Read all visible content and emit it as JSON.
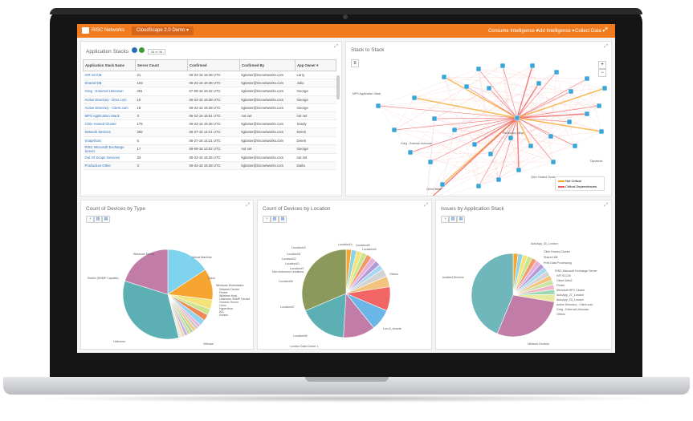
{
  "topbar": {
    "logo": "RISC Networks",
    "demo": "CloudScape 2.0 Demo",
    "menus": [
      "Consume Intelligence",
      "Add Intelligence",
      "Collect Data"
    ],
    "menu_icon": "hamburger-icon"
  },
  "app_stacks": {
    "title": "Application Stacks",
    "count_badge": "28 of 46",
    "columns": [
      "Application Stack Name",
      "Server Count",
      "Confirmed",
      "Confirmed By",
      "App Owner"
    ],
    "rows": [
      {
        "name": "IVR SCCM",
        "count": "21",
        "confirmed": "06-24-16 15:38 UTC",
        "by": "kgloster@riscnetworks.com",
        "owner": "Larry"
      },
      {
        "name": "Shared DB",
        "count": "103",
        "confirmed": "06-24-16 15:38 UTC",
        "by": "kgloster@riscnetworks.com",
        "owner": "Julio"
      },
      {
        "name": "Greg - External Unknown",
        "count": "291",
        "confirmed": "07-08-16 15:32 UTC",
        "by": "kgloster@riscnetworks.com",
        "owner": "George"
      },
      {
        "name": "Active Directory - Dmz.com",
        "count": "10",
        "confirmed": "06-24-16 15:38 UTC",
        "by": "kgloster@riscnetworks.com",
        "owner": "George"
      },
      {
        "name": "Active Directory - Client.com",
        "count": "18",
        "confirmed": "06-24-16 15:38 UTC",
        "by": "kgloster@riscnetworks.com",
        "owner": "George"
      },
      {
        "name": "MPS Application Stack",
        "count": "3",
        "confirmed": "06-24-16 15:51 UTC",
        "by": "not set",
        "owner": "not set"
      },
      {
        "name": "Citrix Hosted Cluster",
        "count": "176",
        "confirmed": "06-24-16 15:38 UTC",
        "by": "kgloster@riscnetworks.com",
        "owner": "Sandy"
      },
      {
        "name": "Network Devices",
        "count": "282",
        "confirmed": "06-27-16 14:21 UTC",
        "by": "kgloster@riscnetworks.com",
        "owner": "Derek"
      },
      {
        "name": "Snapshots",
        "count": "5",
        "confirmed": "06-27-16 14:21 UTC",
        "by": "kgloster@riscnetworks.com",
        "owner": "Derek"
      },
      {
        "name": "RISC Microsoft Exchange Server",
        "count": "17",
        "confirmed": "06-08-16 13:02 UTC",
        "by": "not set",
        "owner": "George"
      },
      {
        "name": "Out Of Scope Services",
        "count": "33",
        "confirmed": "06-24-16 15:35 UTC",
        "by": "kgloster@riscnetworks.com",
        "owner": "not set"
      },
      {
        "name": "Production Other",
        "count": "3",
        "confirmed": "06-24-16 15:38 UTC",
        "by": "kgloster@riscnetworks.com",
        "owner": "Darla"
      }
    ]
  },
  "stack_to_stack": {
    "title": "Stack to Stack",
    "legend": [
      "Not Critical",
      "Critical Dependencies"
    ],
    "node_labels": [
      "MPS Application Stack",
      "Greg - External Unknown",
      "Dynamics",
      "Citrix Hosted Cluster",
      "Client Web2",
      "Production Other"
    ]
  },
  "devices_by_type": {
    "title": "Count of Devices by Type",
    "labels": [
      "Windows Server",
      "Virtual Machine",
      "Cisco",
      "Switch (SNMP Capable)",
      "Windows Workstation",
      "Network Device",
      "Printer",
      "Wireless Host",
      "Unknown SNMP Device",
      "Generic Server",
      "Linux",
      "Hypervisor",
      "AIX",
      "Solaris",
      "Unknown",
      "VMware"
    ]
  },
  "devices_by_location": {
    "title": "Count of Devices by Location",
    "labels": [
      "Location14",
      "Location45",
      "Location44",
      "Location03",
      "Location01",
      "Location02",
      "Location10",
      "Location47",
      "Non-Unknown Locations",
      "Location06",
      "Location07",
      "Location09",
      "London Data Center 1",
      "Lon-A_remote",
      "Others"
    ]
  },
  "issues_by_stack": {
    "title": "Issues by Application Stack",
    "labels": [
      "AutoApp_35_London",
      "Citrix Hosted Cluster",
      "Shared DB",
      "Print Data Processing",
      "RISC Microsoft Exchange Server",
      "IVR SCCM",
      "Client Web2",
      "Finder",
      "Microsoft HPC Cluster",
      "AutoApp_27_London",
      "AutoApp_33_London",
      "Active Directory - Client.com",
      "Greg - External Unknown",
      "Others",
      "Isolated Devices",
      "Network Devices"
    ]
  },
  "colors": {
    "brand": "#f07c1f",
    "accent": "#2a6ebb",
    "critical": "#ee5a5a",
    "not_critical": "#f5a623"
  }
}
